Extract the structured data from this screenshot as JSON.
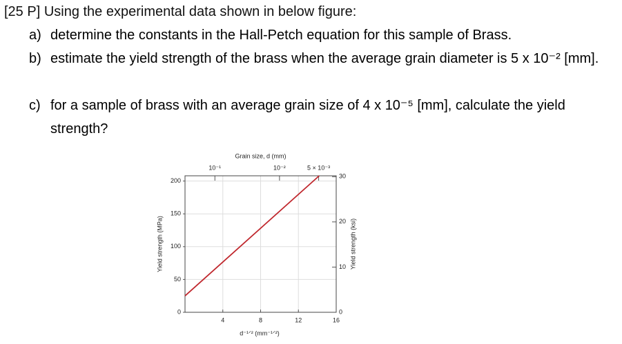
{
  "question": {
    "title": "[25 P] Using the experimental data shown in below figure:",
    "items": [
      {
        "label": "a)",
        "text": "determine the constants in the Hall-Petch equation for this sample of Brass."
      },
      {
        "label": "b)",
        "text": "estimate the yield strength of the brass when the average grain diameter is 5 x 10⁻² [mm]."
      },
      {
        "label": "c)",
        "text": "for a sample of brass with an average grain size of 4 x 10⁻⁵ [mm], calculate the yield strength?"
      }
    ]
  },
  "chart_data": {
    "type": "line",
    "xlabel": "d⁻¹ᐟ² (mm⁻¹ᐟ²)",
    "ylabel": "Yield strength (MPa)",
    "y2label": "Yield strength (ksi)",
    "x2label": "Grain size, d (mm)",
    "xlim": [
      0,
      16
    ],
    "xticks": [
      4,
      8,
      12,
      16
    ],
    "ylim": [
      0,
      208
    ],
    "yticks": [
      0,
      50,
      100,
      150,
      200
    ],
    "y2lim": [
      0,
      30.2
    ],
    "y2ticks": [
      0,
      10,
      20,
      30
    ],
    "x2ticks": [
      {
        "value": 0.1,
        "label": "10⁻¹"
      },
      {
        "value": 0.01,
        "label": "10⁻²"
      },
      {
        "value": 0.005,
        "label": "5 × 10⁻³"
      }
    ],
    "grid": true,
    "series": [
      {
        "color": "#c0272d",
        "x": [
          0,
          14.2
        ],
        "values": [
          25,
          208
        ]
      }
    ]
  }
}
